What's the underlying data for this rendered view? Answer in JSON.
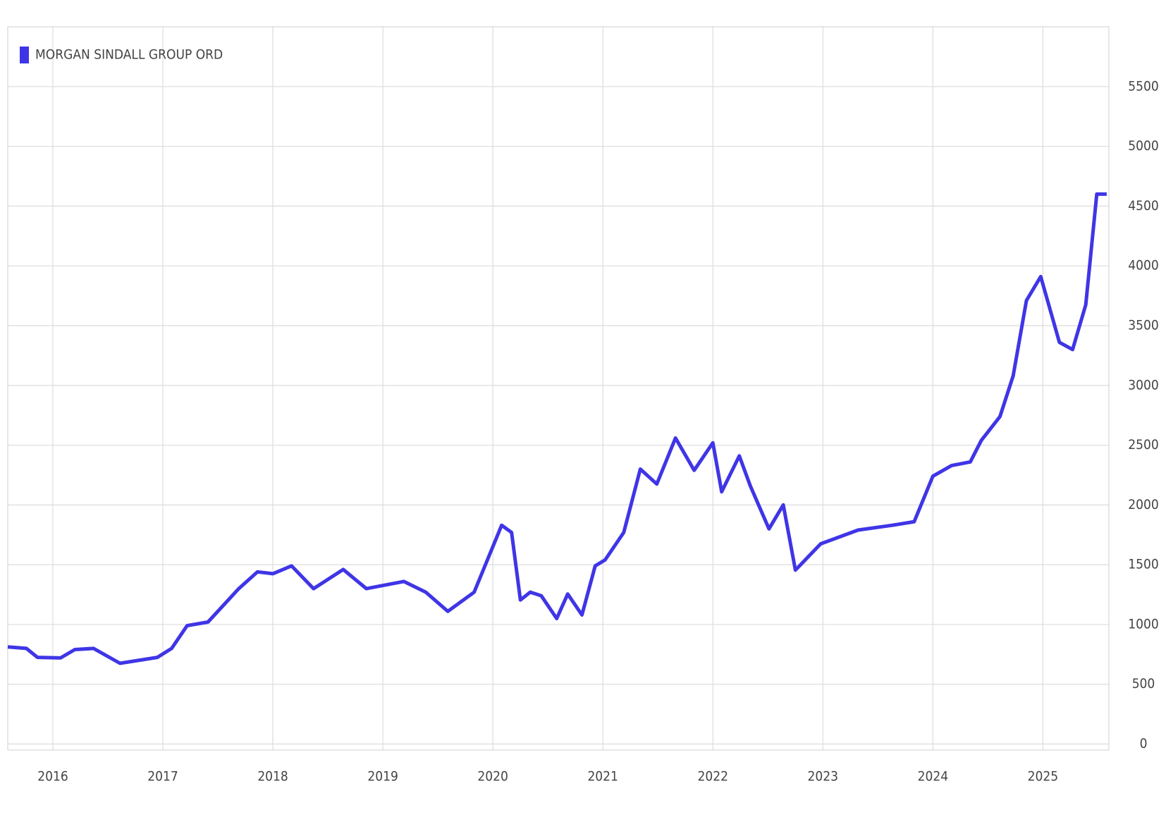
{
  "chart_data": {
    "type": "line",
    "x": [
      2015.59,
      2015.76,
      2015.86,
      2016.07,
      2016.2,
      2016.37,
      2016.61,
      2016.95,
      2017.08,
      2017.22,
      2017.41,
      2017.69,
      2017.86,
      2018.0,
      2018.17,
      2018.37,
      2018.64,
      2018.85,
      2019.19,
      2019.39,
      2019.59,
      2019.83,
      2020.08,
      2020.17,
      2020.25,
      2020.34,
      2020.44,
      2020.58,
      2020.68,
      2020.81,
      2020.93,
      2021.02,
      2021.19,
      2021.34,
      2021.49,
      2021.66,
      2021.83,
      2022.0,
      2022.08,
      2022.24,
      2022.34,
      2022.51,
      2022.64,
      2022.75,
      2022.98,
      2023.32,
      2023.63,
      2023.83,
      2024.0,
      2024.17,
      2024.34,
      2024.44,
      2024.61,
      2024.73,
      2024.85,
      2024.98,
      2025.15,
      2025.27,
      2025.39,
      2025.49,
      2025.58
    ],
    "series": [
      {
        "name": "MORGAN SINDALL GROUP ORD",
        "color": "#3f35e6",
        "values": [
          812,
          800,
          725,
          720,
          790,
          800,
          675,
          725,
          800,
          990,
          1020,
          1300,
          1440,
          1425,
          1490,
          1300,
          1460,
          1300,
          1360,
          1270,
          1110,
          1270,
          1830,
          1770,
          1205,
          1270,
          1240,
          1050,
          1255,
          1080,
          1490,
          1540,
          1770,
          2300,
          2175,
          2560,
          2290,
          2520,
          2110,
          2410,
          2160,
          1800,
          2000,
          1455,
          1675,
          1790,
          1830,
          1860,
          2240,
          2330,
          2360,
          2540,
          2740,
          3080,
          3710,
          3910,
          3360,
          3300,
          3675,
          4600,
          4600
        ]
      }
    ],
    "xlim": [
      2015.59,
      2025.6
    ],
    "xticks": [
      2016,
      2017,
      2018,
      2019,
      2020,
      2021,
      2022,
      2023,
      2024,
      2025
    ],
    "ylim": [
      -50,
      6000
    ],
    "yticks": [
      0,
      500,
      1000,
      1500,
      2000,
      2500,
      3000,
      3500,
      4000,
      4500,
      5000,
      5500
    ],
    "grid": true,
    "legend": "top-left"
  }
}
